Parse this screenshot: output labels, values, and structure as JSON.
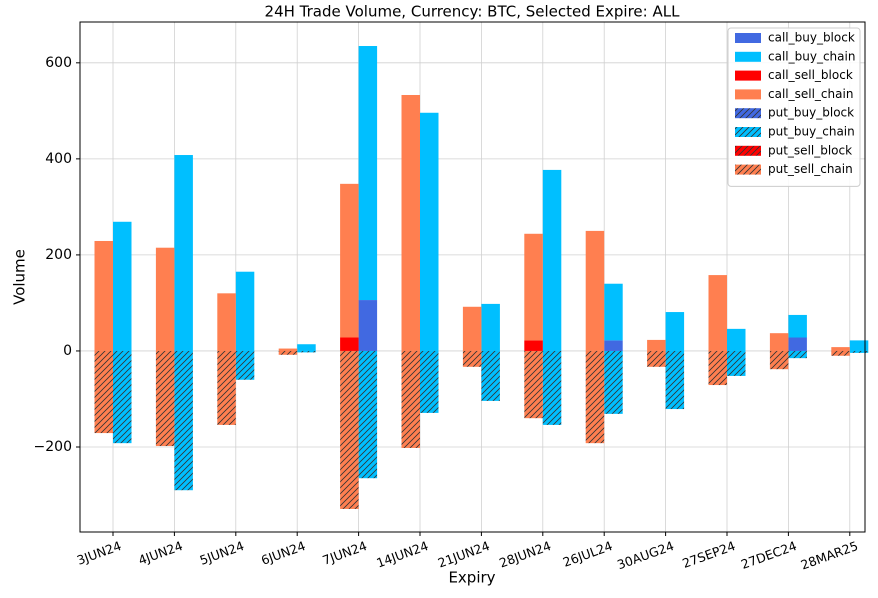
{
  "chart_data": {
    "type": "bar",
    "title": "24H Trade Volume, Currency: BTC, Selected Expire: ALL",
    "xlabel": "Expiry",
    "ylabel": "Volume",
    "categories": [
      "3JUN24",
      "4JUN24",
      "5JUN24",
      "6JUN24",
      "7JUN24",
      "14JUN24",
      "21JUN24",
      "28JUN24",
      "26JUL24",
      "30AUG24",
      "27SEP24",
      "27DEC24",
      "28MAR25"
    ],
    "series": [
      {
        "name": "call_buy_block",
        "color": "#4169e1",
        "values": [
          0,
          0,
          0,
          0,
          106,
          0,
          0,
          0,
          22,
          0,
          0,
          28,
          0
        ]
      },
      {
        "name": "call_buy_chain",
        "color": "#00bfff",
        "values": [
          269,
          408,
          165,
          14,
          529,
          496,
          98,
          377,
          118,
          81,
          46,
          47,
          22
        ]
      },
      {
        "name": "call_sell_block",
        "color": "#ff0000",
        "values": [
          0,
          0,
          0,
          0,
          28,
          0,
          0,
          22,
          0,
          0,
          0,
          0,
          0
        ]
      },
      {
        "name": "call_sell_chain",
        "color": "#ff7f50",
        "values": [
          229,
          215,
          120,
          5,
          320,
          533,
          92,
          222,
          250,
          23,
          158,
          37,
          8
        ]
      },
      {
        "name": "put_buy_block",
        "color": "#4169e1",
        "hatch": true,
        "values": [
          0,
          0,
          0,
          0,
          0,
          0,
          0,
          0,
          0,
          0,
          0,
          0,
          0
        ]
      },
      {
        "name": "put_buy_chain",
        "color": "#00bfff",
        "hatch": true,
        "values": [
          -192,
          -290,
          -60,
          -3,
          -265,
          -129,
          -104,
          -154,
          -131,
          -121,
          -52,
          -15,
          -4
        ]
      },
      {
        "name": "put_sell_block",
        "color": "#ff0000",
        "hatch": true,
        "values": [
          0,
          0,
          0,
          0,
          0,
          0,
          0,
          0,
          0,
          0,
          0,
          0,
          0
        ]
      },
      {
        "name": "put_sell_chain",
        "color": "#ff7f50",
        "hatch": true,
        "values": [
          -171,
          -198,
          -154,
          -8,
          -329,
          -202,
          -33,
          -140,
          -192,
          -33,
          -71,
          -38,
          -10
        ]
      }
    ],
    "ylim": [
      -377,
      685
    ],
    "yticks": [
      {
        "value": -200,
        "label": "−200"
      },
      0,
      200,
      400,
      600
    ],
    "grid": true,
    "legend": "upper right"
  }
}
